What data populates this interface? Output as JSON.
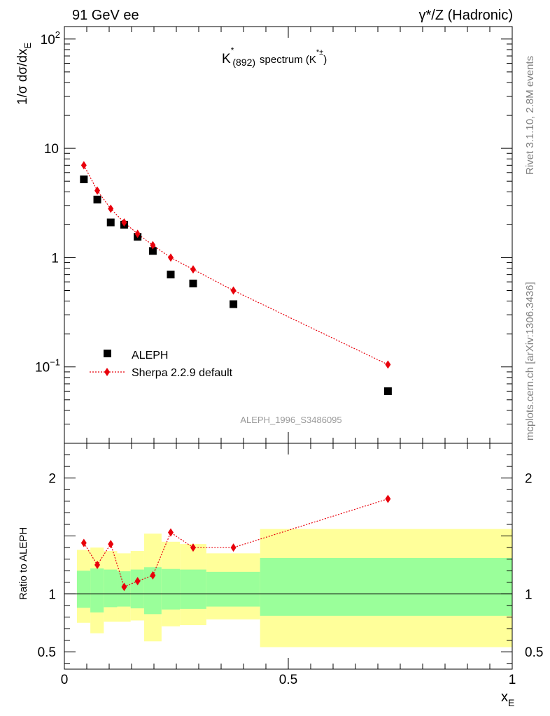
{
  "header": {
    "left": "91 GeV ee",
    "right": "γ*/Z (Hadronic)"
  },
  "title": {
    "main": "K",
    "sup": "*",
    "sub": "(892)",
    "rest": "spectrum (K",
    "rest_sup": "*±",
    "close": ")"
  },
  "side_labels": {
    "rivet": "Rivet 3.1.10,  2.8M events",
    "mcplots": "mcplots.cern.ch [arXiv:1306.3436]"
  },
  "analysis_id": "ALEPH_1996_S3486095",
  "colors": {
    "mc": "#e8000b",
    "data": "#000000",
    "band_outer": "#ffff9a",
    "band_inner": "#9aff9a"
  },
  "chart_data": [
    {
      "type": "scatter",
      "scale": "log",
      "ylabel": "1/σ dσ/dx",
      "ylabel_sub": "E",
      "xlim": [
        0,
        1.0
      ],
      "ylim": [
        0.02,
        130
      ],
      "y_ticks": [
        {
          "value": 0.1,
          "label": "10",
          "sup": "−1"
        },
        {
          "value": 1,
          "label": "1"
        },
        {
          "value": 10,
          "label": "10"
        },
        {
          "value": 100,
          "label": "10",
          "sup": "2"
        }
      ],
      "legend_position": "bottom-left",
      "series": [
        {
          "name": "ALEPH",
          "marker": "square",
          "x": [
            0.0435,
            0.0735,
            0.1035,
            0.1335,
            0.1635,
            0.1975,
            0.2375,
            0.2875,
            0.3775,
            0.7225
          ],
          "y": [
            5.2,
            3.4,
            2.1,
            2.0,
            1.55,
            1.15,
            0.7,
            0.58,
            0.375,
            0.06
          ]
        },
        {
          "name": "Sherpa 2.2.9 default",
          "marker": "diamond",
          "line": "dotted",
          "x": [
            0.0435,
            0.0735,
            0.1035,
            0.1335,
            0.1635,
            0.1975,
            0.2375,
            0.2875,
            0.3775,
            0.7225
          ],
          "y": [
            7.0,
            4.1,
            2.8,
            2.1,
            1.65,
            1.3,
            1.0,
            0.78,
            0.5,
            0.105
          ]
        }
      ]
    },
    {
      "type": "line",
      "ylabel": "Ratio to ALEPH",
      "xlabel": "x",
      "xlabel_sub": "E",
      "xlim": [
        0,
        1.0
      ],
      "ylim": [
        0.35,
        2.3
      ],
      "y_ticks": [
        {
          "value": 0.5,
          "label": "0.5"
        },
        {
          "value": 1,
          "label": "1"
        },
        {
          "value": 2,
          "label": "2"
        }
      ],
      "x_ticks": [
        {
          "value": 0,
          "label": "0"
        },
        {
          "value": 0.5,
          "label": "0.5"
        },
        {
          "value": 1,
          "label": "1"
        }
      ],
      "band_bins": [
        {
          "x0": 0.028,
          "x1": 0.058,
          "outer": [
            0.75,
            1.38
          ],
          "inner": [
            0.88,
            1.2
          ]
        },
        {
          "x0": 0.058,
          "x1": 0.088,
          "outer": [
            0.66,
            1.4
          ],
          "inner": [
            0.84,
            1.22
          ]
        },
        {
          "x0": 0.088,
          "x1": 0.118,
          "outer": [
            0.76,
            1.37
          ],
          "inner": [
            0.885,
            1.21
          ]
        },
        {
          "x0": 0.118,
          "x1": 0.148,
          "outer": [
            0.76,
            1.35
          ],
          "inner": [
            0.89,
            1.195
          ]
        },
        {
          "x0": 0.148,
          "x1": 0.178,
          "outer": [
            0.77,
            1.37
          ],
          "inner": [
            0.875,
            1.21
          ]
        },
        {
          "x0": 0.178,
          "x1": 0.217,
          "outer": [
            0.59,
            1.52
          ],
          "inner": [
            0.825,
            1.23
          ]
        },
        {
          "x0": 0.217,
          "x1": 0.258,
          "outer": [
            0.72,
            1.45
          ],
          "inner": [
            0.865,
            1.215
          ]
        },
        {
          "x0": 0.258,
          "x1": 0.317,
          "outer": [
            0.73,
            1.43
          ],
          "inner": [
            0.87,
            1.21
          ]
        },
        {
          "x0": 0.317,
          "x1": 0.437,
          "outer": [
            0.78,
            1.35
          ],
          "inner": [
            0.89,
            1.19
          ]
        },
        {
          "x0": 0.437,
          "x1": 1.0,
          "outer": [
            0.54,
            1.56
          ],
          "inner": [
            0.81,
            1.31
          ]
        }
      ],
      "series": [
        {
          "name": "Sherpa 2.2.9 default",
          "marker": "diamond",
          "line": "dotted",
          "x": [
            0.0435,
            0.0735,
            0.1035,
            0.1335,
            0.1635,
            0.1975,
            0.2375,
            0.2875,
            0.3775,
            0.7225
          ],
          "y": [
            1.44,
            1.25,
            1.43,
            1.06,
            1.11,
            1.16,
            1.53,
            1.4,
            1.4,
            1.82
          ]
        }
      ]
    }
  ]
}
